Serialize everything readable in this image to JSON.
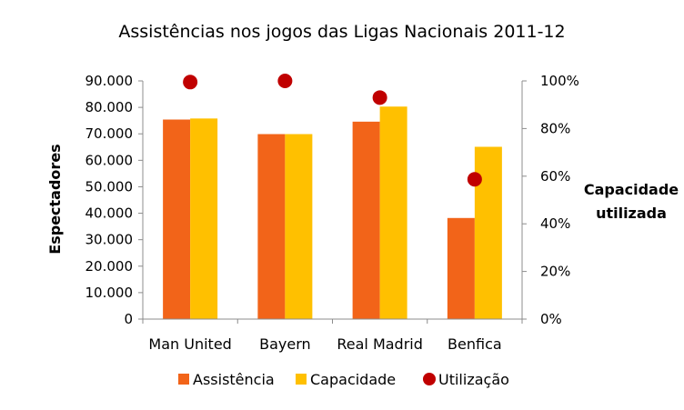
{
  "chart_data": {
    "type": "bar",
    "title": "Assistências nos jogos das Ligas Nacionais 2011-12",
    "xlabel": "",
    "ylabel": "Espectadores",
    "y2label_line1": "Capacidade",
    "y2label_line2": "utilizada",
    "categories": [
      "Man United",
      "Bayern",
      "Real Madrid",
      "Benfica"
    ],
    "ylim": [
      0,
      90000
    ],
    "y_ticks": [
      0,
      10000,
      20000,
      30000,
      40000,
      50000,
      60000,
      70000,
      80000,
      90000
    ],
    "y_tick_labels": [
      "0",
      "10.000",
      "20.000",
      "30.000",
      "40.000",
      "50.000",
      "60.000",
      "70.000",
      "80.000",
      "90.000"
    ],
    "y2lim": [
      0,
      1
    ],
    "y2_ticks": [
      0,
      0.2,
      0.4,
      0.6,
      0.8,
      1.0
    ],
    "y2_tick_labels": [
      "0%",
      "20%",
      "40%",
      "60%",
      "80%",
      "100%"
    ],
    "series": [
      {
        "name": "Assistência",
        "type": "bar",
        "axis": "left",
        "color": "#F26419",
        "values": [
          75400,
          69900,
          74600,
          38200
        ]
      },
      {
        "name": "Capacidade",
        "type": "bar",
        "axis": "left",
        "color": "#FFC000",
        "values": [
          75800,
          69900,
          80300,
          65100
        ]
      },
      {
        "name": "Utilização",
        "type": "scatter",
        "axis": "right",
        "color": "#C00000",
        "values": [
          0.995,
          1.0,
          0.93,
          0.587
        ]
      }
    ],
    "grid": false,
    "legend": "bottom"
  }
}
